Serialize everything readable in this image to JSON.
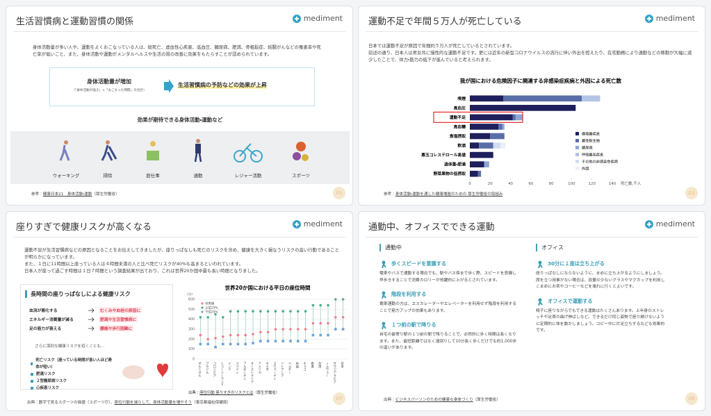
{
  "slides": [
    {
      "title": "生活習慣病と運動習慣の関係",
      "brand": "mediment",
      "body": "身体活動量が多い人や、運動をよくおこなっている人は、総死亡、虚血性心疾患、高血圧、糖尿病、肥満、骨粗鬆症、結腸がんなどの罹患率や死亡率が低いこと、また、身体活動や運動がメンタルヘルスや生活の質の改善に効果をもたらすことが認められています。",
      "box_left": "身体活動量が増加",
      "box_left_note": "（「身体活動の強さ」×「おこなった時間」の合計）",
      "box_right": "生活習慣病の予防などの効果が上昇",
      "subheading": "効果が期待できる身体活動・運動など",
      "activities": [
        "ウォーキング",
        "掃除",
        "庭仕事",
        "通勤",
        "レジャー活動",
        "スポーツ"
      ],
      "source_label": "参考：",
      "source": "健康日本21　身体活動・運動",
      "source_org": "（厚生労働省）",
      "page": "01"
    },
    {
      "title": "運動不足で年間５万人が死亡している",
      "brand": "mediment",
      "body": [
        "日本では運動不足が原因で年間約５万人が死亡しているとされています。",
        "前述の通り、日本人は男女共に慢性的な運動不足です。更には近年の新型コロナウイルスの流行に伴い外出を控えたり、在宅勤務により通勤などの移動が大幅に減少したことで、体力・筋力の低下が進んでいると考えられます。"
      ],
      "source_label": "参考：",
      "source": "身体活動・運動を通した健康増進のための 厚生労働省の取組み",
      "page": "03"
    },
    {
      "title": "座りすぎで健康リスクが高くなる",
      "brand": "mediment",
      "body": [
        "運動不足が生活習慣病などの原因となることをお伝えしてきましたが、座りっぱなしも死亡のリスクを含め、健康を大きく損なうリスクの高い行動であることが明らかになっています。",
        "また、１日に11時間以上座っている人は４時間未満の人と比べ死亡リスクが40%も高まるといわれています。",
        "日本人が座って過ごす時間は１日７時間という調査結果が出ており、これは世界20か国中最も長い時間となりました。"
      ],
      "box_heading": "長時間の座りっぱなしによる健康リスク",
      "causes": [
        {
          "cause": "血流が悪化する",
          "effect": "むくみや血栓の原因に"
        },
        {
          "cause": "エネルギー消費量が減る",
          "effect": "肥満や生活習慣病に"
        },
        {
          "cause": "足の筋力が衰える",
          "effect": "腰痛や歩行困難に"
        }
      ],
      "lead": "さらに深刻な健康リスクを招くことも…",
      "risks": [
        "死亡リスク（座っている時間が長い人ほど寿命が短い）",
        "肥満リスク",
        "２型糖尿病リスク",
        "心疾患リスク"
      ],
      "chart_source_label": "出典：",
      "chart_source": "座位行動 座りすぎのリスクとは",
      "chart_source_org": "（厚生労働省）",
      "source_label": "出典：",
      "source": "数字で見るスポーツの価値（スポーツ庁）、",
      "source2": "座位行動を減らして、身体活動量を増やそう",
      "source_org": "（東京都福祉保健局）",
      "page": "07"
    },
    {
      "title": "通勤中、オフィスでできる運動",
      "brand": "mediment",
      "columns": [
        {
          "heading": "通勤中",
          "items": [
            {
              "title": "歩くスピードを意識する",
              "text": "電車やバスで通勤する場合でも、駅やバス停まで歩く際、スピードを意識し早歩きすることで消費カロリーが飛躍的に上がるとされています。"
            },
            {
              "title": "階段を利用する",
              "text": "電車通勤の方は、エスカレーターやエレベーターを利用せず階段を利用することで筋力アップの効果もあります。"
            },
            {
              "title": "１つ前の駅で降りる",
              "text": "自宅の最寄り駅の１つ前の駅で降りることで、必然的に歩く時間は長くなります。また、最短距離ではなく遠回りして10分長く歩くだけでも約1,000歩の違いがあります。"
            }
          ]
        },
        {
          "heading": "オフィス",
          "items": [
            {
              "title": "30分に１度は立ち上がる",
              "text": "座りっぱなしにならないように、まめに立ち上がるようにしましょう。席を立つ用事がない場合は、容量の少ないグラスやマグカップを利用しこまめにお茶やコーヒーなどを淹れに行くとよいです。"
            },
            {
              "title": "オフィスで運動する",
              "text": "椅子に座りながらでもできる運動はたくさんあります。上半身のストレッチや足首の曲げ伸ばしなど、できるだけ同じ姿勢で座り続けないように定期的に体を動かしましょう。コピー中に片足立ちするなども効果的です。"
            }
          ]
        }
      ],
      "source_label": "出典：",
      "source": "ビジネスパーソンのための健康な身体づくり",
      "source_org": "（厚生労働省）",
      "page": "08"
    }
  ],
  "chart_data": [
    {
      "type": "hbar-stacked",
      "title": "我が国における危険因子に関連する非感染症疾病と外因による死亡数",
      "categories": [
        "喫煙",
        "高血圧",
        "運動不足",
        "高血糖",
        "食塩摂取",
        "飲酒",
        "悪玉コレステロール高値",
        "過体重・肥満",
        "野菜果物の低摂取"
      ],
      "series": [
        {
          "name": "循環器疾患",
          "color": "#1e1f5c",
          "values": [
            33,
            104,
            42,
            28,
            20,
            9,
            23,
            14,
            8
          ]
        },
        {
          "name": "悪性新生物",
          "color": "#5a6ea8",
          "values": [
            77,
            0,
            3,
            4,
            14,
            14,
            0,
            0,
            3
          ]
        },
        {
          "name": "糖尿病",
          "color": "#8ea6d4",
          "values": [
            0,
            0,
            7,
            2,
            0,
            0,
            0,
            5,
            0
          ]
        },
        {
          "name": "呼吸器系疾患",
          "color": "#b4c4e6",
          "values": [
            18,
            0,
            0,
            0,
            0,
            0,
            0,
            0,
            0
          ]
        },
        {
          "name": "その他の非感染性疾病",
          "color": "#d3dcf0",
          "values": [
            0,
            0,
            0,
            0,
            0,
            7,
            0,
            0,
            0
          ]
        },
        {
          "name": "外因",
          "color": "#ebeff8",
          "values": [
            0,
            0,
            0,
            0,
            0,
            5,
            0,
            0,
            0
          ]
        }
      ],
      "xlim": [
        0,
        140
      ],
      "xticks": [
        0,
        20,
        40,
        60,
        80,
        100,
        120,
        140
      ],
      "xlabel": "死亡数,千人"
    },
    {
      "type": "dot-range",
      "title": "世界20か国における平日の座位時間",
      "categories": [
        "ポルトガル",
        "ブラジル",
        "コロンビア",
        "ニュージーランド",
        "インド",
        "スペイン",
        "アルゼンチン",
        "オーストラリア",
        "アメリカ",
        "カナダ",
        "スウェーデン",
        "リトアニア",
        "ベルギー",
        "中国",
        "チェコ",
        "香港",
        "台湾",
        "ノルウェー",
        "サウジアラビア",
        "日本"
      ],
      "series": [
        {
          "name": "中央値",
          "color": "#f27d8f",
          "values": [
            240,
            200,
            210,
            225,
            240,
            240,
            240,
            250,
            270,
            270,
            300,
            300,
            300,
            300,
            300,
            360,
            360,
            360,
            420,
            420
          ]
        },
        {
          "name": "上位25%",
          "color": "#4cae8a",
          "values": [
            420,
            420,
            450,
            420,
            480,
            480,
            480,
            480,
            480,
            480,
            480,
            480,
            480,
            480,
            480,
            540,
            540,
            540,
            600,
            600
          ]
        },
        {
          "name": "下位25%",
          "color": "#6fa4d8",
          "values": [
            150,
            150,
            120,
            150,
            150,
            150,
            150,
            160,
            180,
            180,
            180,
            180,
            180,
            180,
            180,
            240,
            240,
            240,
            300,
            300
          ]
        }
      ],
      "ylim": [
        0,
        600
      ],
      "yticks": [
        0,
        100,
        200,
        300,
        400,
        500,
        600
      ],
      "ylabel": "(分)",
      "grid": true
    }
  ]
}
